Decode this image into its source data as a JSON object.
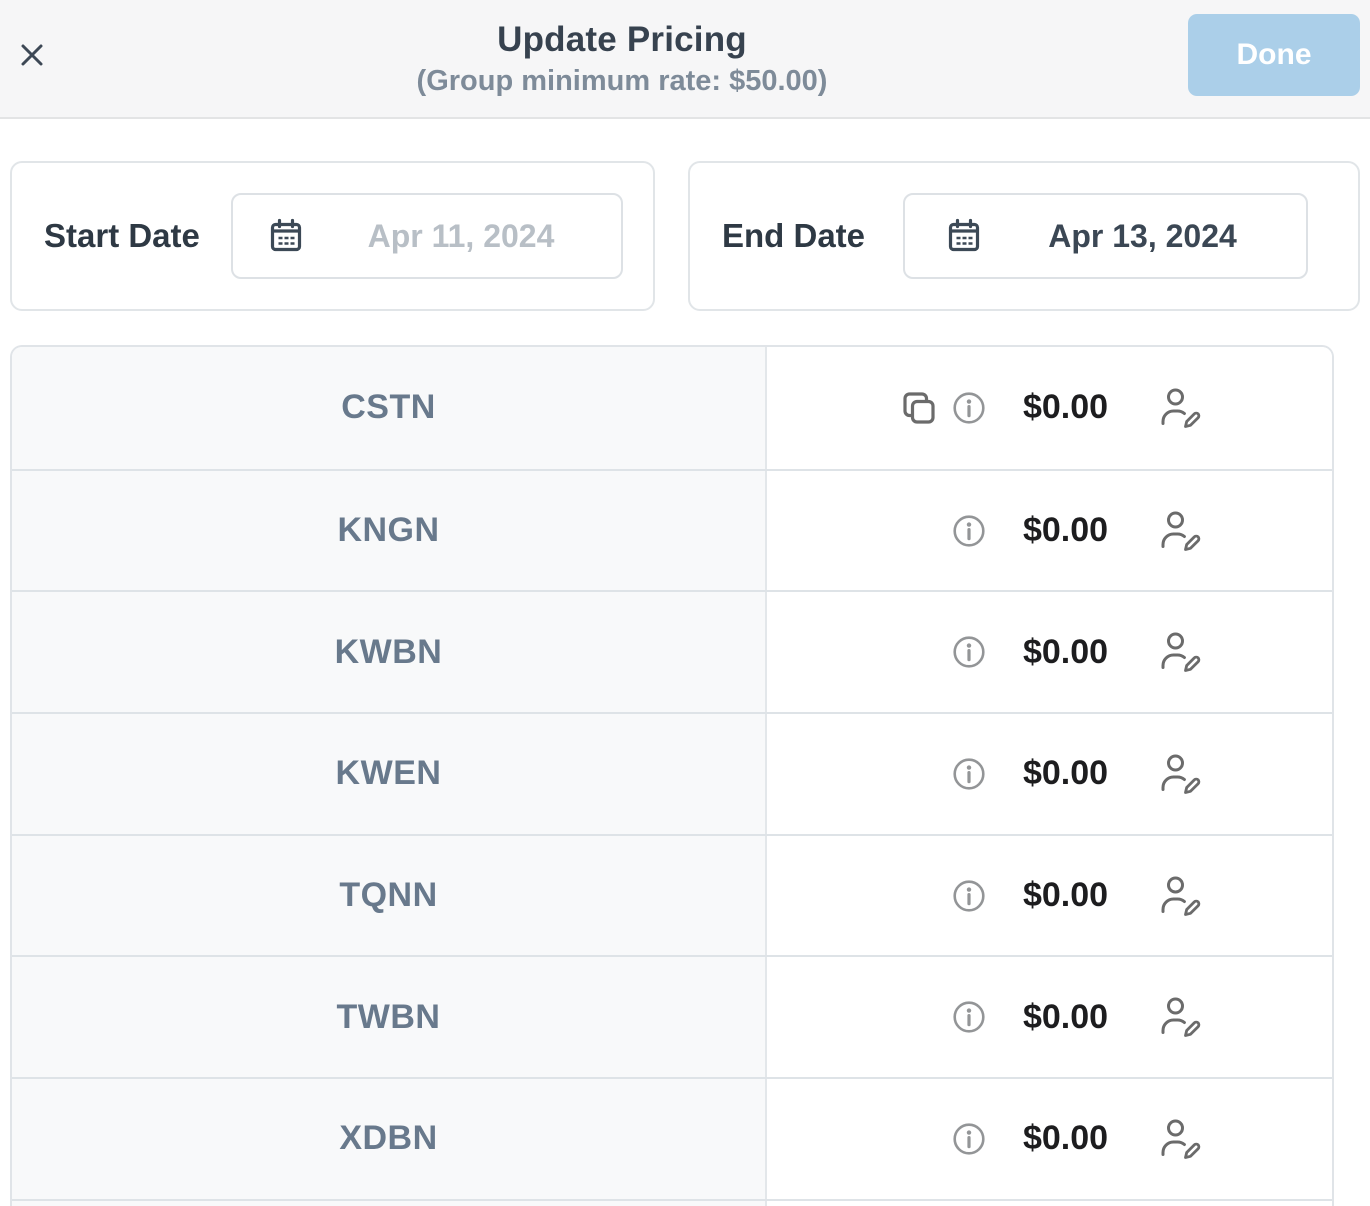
{
  "header": {
    "title": "Update Pricing",
    "subtitle": "(Group minimum rate: $50.00)",
    "done_label": "Done",
    "close_icon": "x-icon"
  },
  "filters": {
    "start_date": {
      "label": "Start Date",
      "placeholder": "Apr 11, 2024",
      "icon": "calendar-icon"
    },
    "end_date": {
      "label": "End Date",
      "value": "Apr 13, 2024",
      "icon": "calendar-icon"
    }
  },
  "pricing_table": {
    "rows": [
      {
        "code": "CSTN",
        "price": "$0.00",
        "has_copy_icon": true
      },
      {
        "code": "KNGN",
        "price": "$0.00",
        "has_copy_icon": false
      },
      {
        "code": "KWBN",
        "price": "$0.00",
        "has_copy_icon": false
      },
      {
        "code": "KWEN",
        "price": "$0.00",
        "has_copy_icon": false
      },
      {
        "code": "TQNN",
        "price": "$0.00",
        "has_copy_icon": false
      },
      {
        "code": "TWBN",
        "price": "$0.00",
        "has_copy_icon": false
      },
      {
        "code": "XDBN",
        "price": "$0.00",
        "has_copy_icon": false
      }
    ],
    "row_icons": [
      "copy-icon",
      "info-icon",
      "person-edit-icon"
    ]
  },
  "colors": {
    "header_background": "#f6f6f7",
    "done_button": "#abcfe9",
    "title_text": "#37424f",
    "subtitle_text": "#7e8b99",
    "row_code_text": "#68798c",
    "price_text": "#1d1d1f",
    "placeholder_text": "#b8bfc6"
  }
}
